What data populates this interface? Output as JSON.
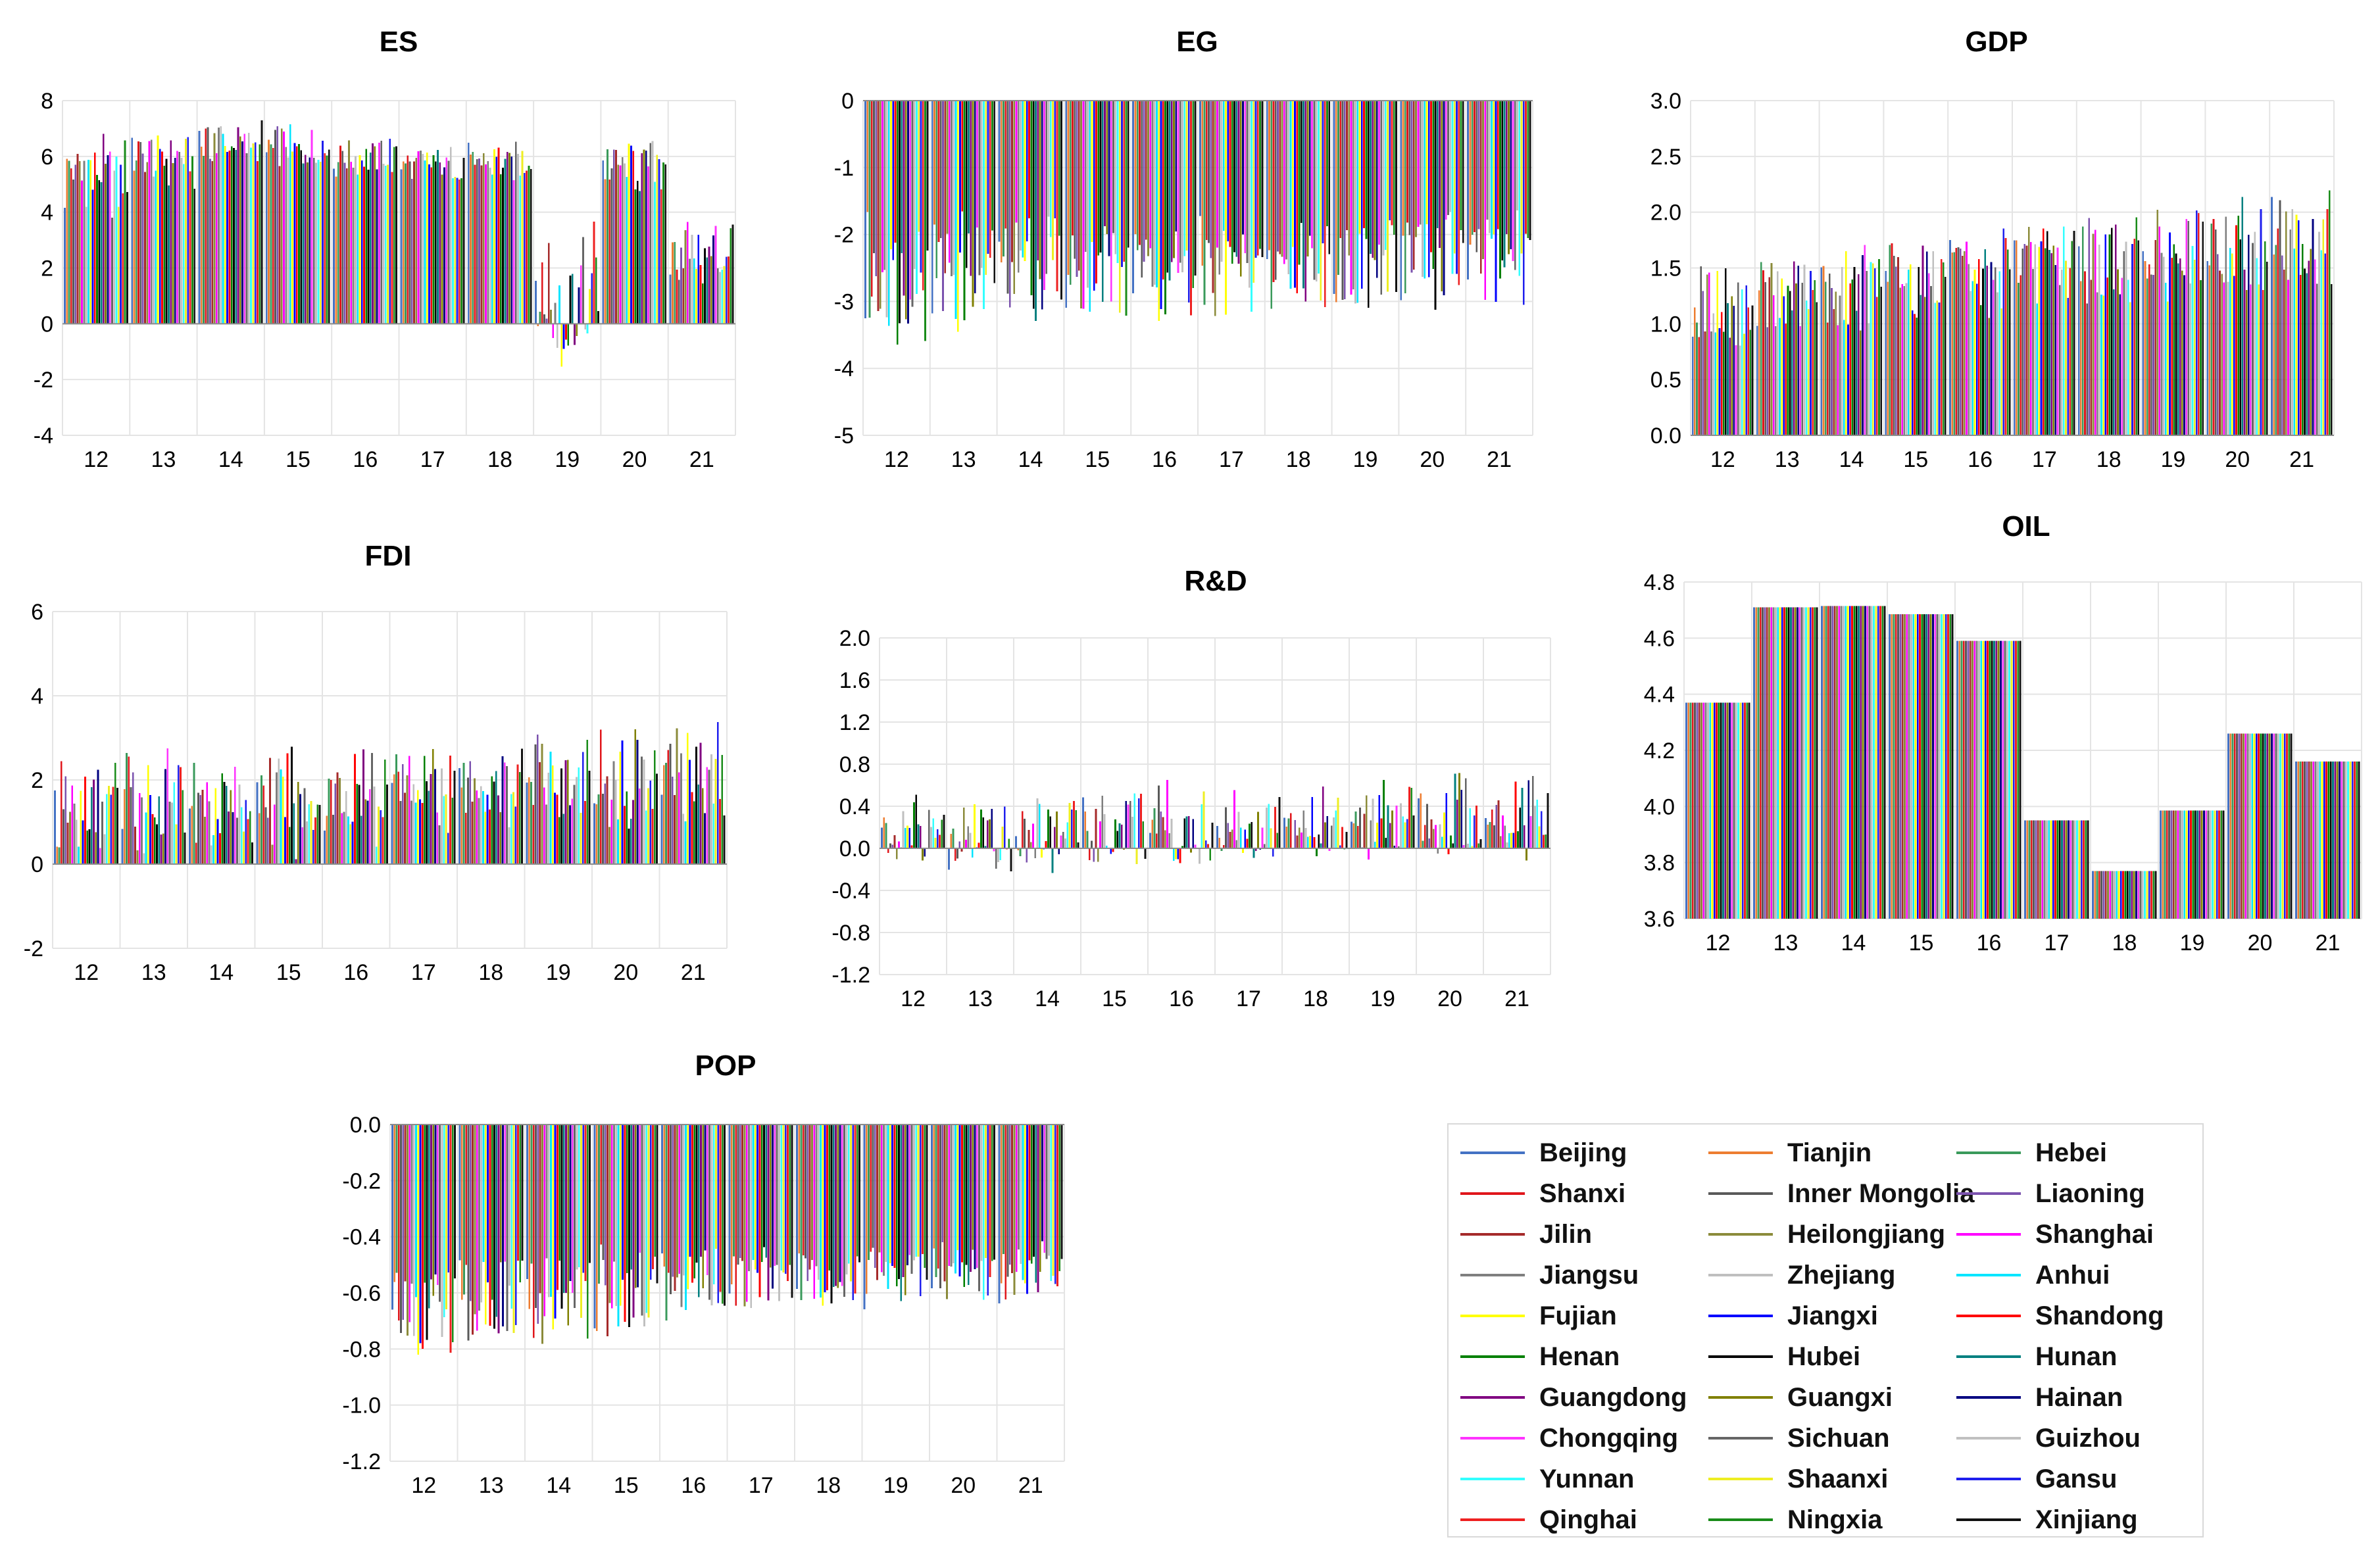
{
  "chart_data": [
    {
      "id": "ES",
      "type": "bar",
      "title": "ES",
      "categories": [
        "12",
        "13",
        "14",
        "15",
        "16",
        "17",
        "18",
        "19",
        "20",
        "21"
      ],
      "ylim": [
        -4,
        8
      ],
      "yticks": [
        -4,
        -2,
        0,
        2,
        4,
        6,
        8
      ],
      "yticks_labels": [
        "-4",
        "-2",
        "0",
        "2",
        "4",
        "6",
        "8"
      ],
      "approx_mean": [
        5.3,
        5.9,
        6.5,
        6.3,
        6.0,
        5.7,
        5.8,
        0.9,
        5.7,
        2.6
      ],
      "approx_spread": [
        1.8,
        1.2,
        1.0,
        1.0,
        0.9,
        0.8,
        0.8,
        3.5,
        1.2,
        1.5
      ]
    },
    {
      "id": "EG",
      "type": "bar",
      "title": "EG",
      "categories": [
        "12",
        "13",
        "14",
        "15",
        "16",
        "17",
        "18",
        "19",
        "20",
        "21"
      ],
      "ylim": [
        -5,
        0
      ],
      "yticks": [
        -5,
        -4,
        -3,
        -2,
        -1,
        0
      ],
      "yticks_labels": [
        "-5",
        "-4",
        "-3",
        "-2",
        "-1",
        "0"
      ],
      "approx_mean": [
        -2.6,
        -2.6,
        -2.5,
        -2.5,
        -2.5,
        -2.5,
        -2.5,
        -2.5,
        -2.4,
        -2.3
      ],
      "approx_spread": [
        1.1,
        1.0,
        1.0,
        0.9,
        0.9,
        0.9,
        0.9,
        0.9,
        0.9,
        0.9
      ]
    },
    {
      "id": "GDP",
      "type": "bar",
      "title": "GDP",
      "categories": [
        "12",
        "13",
        "14",
        "15",
        "16",
        "17",
        "18",
        "19",
        "20",
        "21"
      ],
      "ylim": [
        0,
        3
      ],
      "yticks": [
        0,
        0.5,
        1,
        1.5,
        2,
        2.5,
        3
      ],
      "yticks_labels": [
        "0.0",
        "0.5",
        "1.0",
        "1.5",
        "2.0",
        "2.5",
        "3.0"
      ],
      "approx_mean": [
        1.15,
        1.25,
        1.35,
        1.45,
        1.45,
        1.55,
        1.6,
        1.65,
        1.7,
        1.75
      ],
      "approx_spread": [
        0.45,
        0.45,
        0.45,
        0.45,
        0.45,
        0.45,
        0.5,
        0.5,
        0.5,
        0.5
      ]
    },
    {
      "id": "FDI",
      "type": "bar",
      "title": "FDI",
      "categories": [
        "12",
        "13",
        "14",
        "15",
        "16",
        "17",
        "18",
        "19",
        "20",
        "21"
      ],
      "ylim": [
        -2,
        6
      ],
      "yticks": [
        -2,
        0,
        2,
        4,
        6
      ],
      "yticks_labels": [
        "-2",
        "0",
        "2",
        "4",
        "6"
      ],
      "approx_mean": [
        1.3,
        1.5,
        1.5,
        1.5,
        1.6,
        1.8,
        1.9,
        2.0,
        2.1,
        2.1
      ],
      "approx_spread": [
        1.4,
        1.4,
        1.4,
        1.4,
        1.4,
        1.3,
        1.3,
        1.4,
        1.4,
        1.4
      ]
    },
    {
      "id": "RD",
      "type": "bar",
      "title": "R&D",
      "categories": [
        "12",
        "13",
        "14",
        "15",
        "16",
        "17",
        "18",
        "19",
        "20",
        "21"
      ],
      "ylim": [
        -1.2,
        2.0
      ],
      "yticks": [
        -1.2,
        -0.8,
        -0.4,
        0,
        0.4,
        0.8,
        1.2,
        1.6,
        2.0
      ],
      "yticks_labels": [
        "-1.2",
        "-0.8",
        "-0.4",
        "0.0",
        "0.4",
        "0.8",
        "1.2",
        "1.6",
        "2.0"
      ],
      "approx_mean": [
        0.15,
        0.17,
        0.2,
        0.22,
        0.24,
        0.25,
        0.27,
        0.28,
        0.3,
        0.31
      ],
      "approx_spread": [
        0.45,
        0.45,
        0.45,
        0.45,
        0.45,
        0.45,
        0.45,
        0.45,
        0.45,
        0.45
      ]
    },
    {
      "id": "OIL",
      "type": "bar",
      "title": "OIL",
      "categories": [
        "12",
        "13",
        "14",
        "15",
        "16",
        "17",
        "18",
        "19",
        "20",
        "21"
      ],
      "ylim": [
        3.6,
        4.8
      ],
      "yticks": [
        3.6,
        3.8,
        4.0,
        4.2,
        4.4,
        4.6,
        4.8
      ],
      "yticks_labels": [
        "3.6",
        "3.8",
        "4.0",
        "4.2",
        "4.4",
        "4.6",
        "4.8"
      ],
      "values_all_regions": [
        4.37,
        4.71,
        4.715,
        4.685,
        4.59,
        3.95,
        3.77,
        3.985,
        4.26,
        4.16
      ]
    },
    {
      "id": "POP",
      "type": "bar",
      "title": "POP",
      "categories": [
        "12",
        "13",
        "14",
        "15",
        "16",
        "17",
        "18",
        "19",
        "20",
        "21"
      ],
      "ylim": [
        -1.2,
        0
      ],
      "yticks": [
        -1.2,
        -1.0,
        -0.8,
        -0.6,
        -0.4,
        -0.2,
        0
      ],
      "yticks_labels": [
        "-1.2",
        "-1.0",
        "-0.8",
        "-0.6",
        "-0.4",
        "-0.2",
        "0.0"
      ],
      "approx_mean": [
        -0.66,
        -0.64,
        -0.62,
        -0.6,
        -0.58,
        -0.56,
        -0.55,
        -0.54,
        -0.53,
        -0.52
      ],
      "approx_spread": [
        0.2,
        0.2,
        0.19,
        0.18,
        0.17,
        0.16,
        0.15,
        0.15,
        0.14,
        0.14
      ]
    }
  ],
  "legend": {
    "items": [
      {
        "name": "Beijing",
        "color": "#4472c4"
      },
      {
        "name": "Tianjin",
        "color": "#ed7d31"
      },
      {
        "name": "Hebei",
        "color": "#3a9a5b"
      },
      {
        "name": "Shanxi",
        "color": "#e0161b"
      },
      {
        "name": "Inner Mongolia",
        "color": "#595959"
      },
      {
        "name": "Liaoning",
        "color": "#7b52ae"
      },
      {
        "name": "Jilin",
        "color": "#a52a2a"
      },
      {
        "name": "Heilongjiang",
        "color": "#8b8b3a"
      },
      {
        "name": "Shanghai",
        "color": "#ff00ff"
      },
      {
        "name": "Jiangsu",
        "color": "#7f7f7f"
      },
      {
        "name": "Zhejiang",
        "color": "#bfbfbf"
      },
      {
        "name": "Anhui",
        "color": "#00e5ff"
      },
      {
        "name": "Fujian",
        "color": "#ffff00"
      },
      {
        "name": "Jiangxi",
        "color": "#0000ff"
      },
      {
        "name": "Shandong",
        "color": "#ff0000"
      },
      {
        "name": "Henan",
        "color": "#008000"
      },
      {
        "name": "Hubei",
        "color": "#000000"
      },
      {
        "name": "Hunan",
        "color": "#008080"
      },
      {
        "name": "Guangdong",
        "color": "#800080"
      },
      {
        "name": "Guangxi",
        "color": "#808000"
      },
      {
        "name": "Hainan",
        "color": "#000080"
      },
      {
        "name": "Chongqing",
        "color": "#ff33ff"
      },
      {
        "name": "Sichuan",
        "color": "#666666"
      },
      {
        "name": "Guizhou",
        "color": "#c0c0c0"
      },
      {
        "name": "Yunnan",
        "color": "#33ffff"
      },
      {
        "name": "Shaanxi",
        "color": "#eeee22"
      },
      {
        "name": "Gansu",
        "color": "#1f1fee"
      },
      {
        "name": "Qinghai",
        "color": "#ee2020"
      },
      {
        "name": "Ningxia",
        "color": "#1a8c1a"
      },
      {
        "name": "Xinjiang",
        "color": "#111111"
      }
    ]
  }
}
